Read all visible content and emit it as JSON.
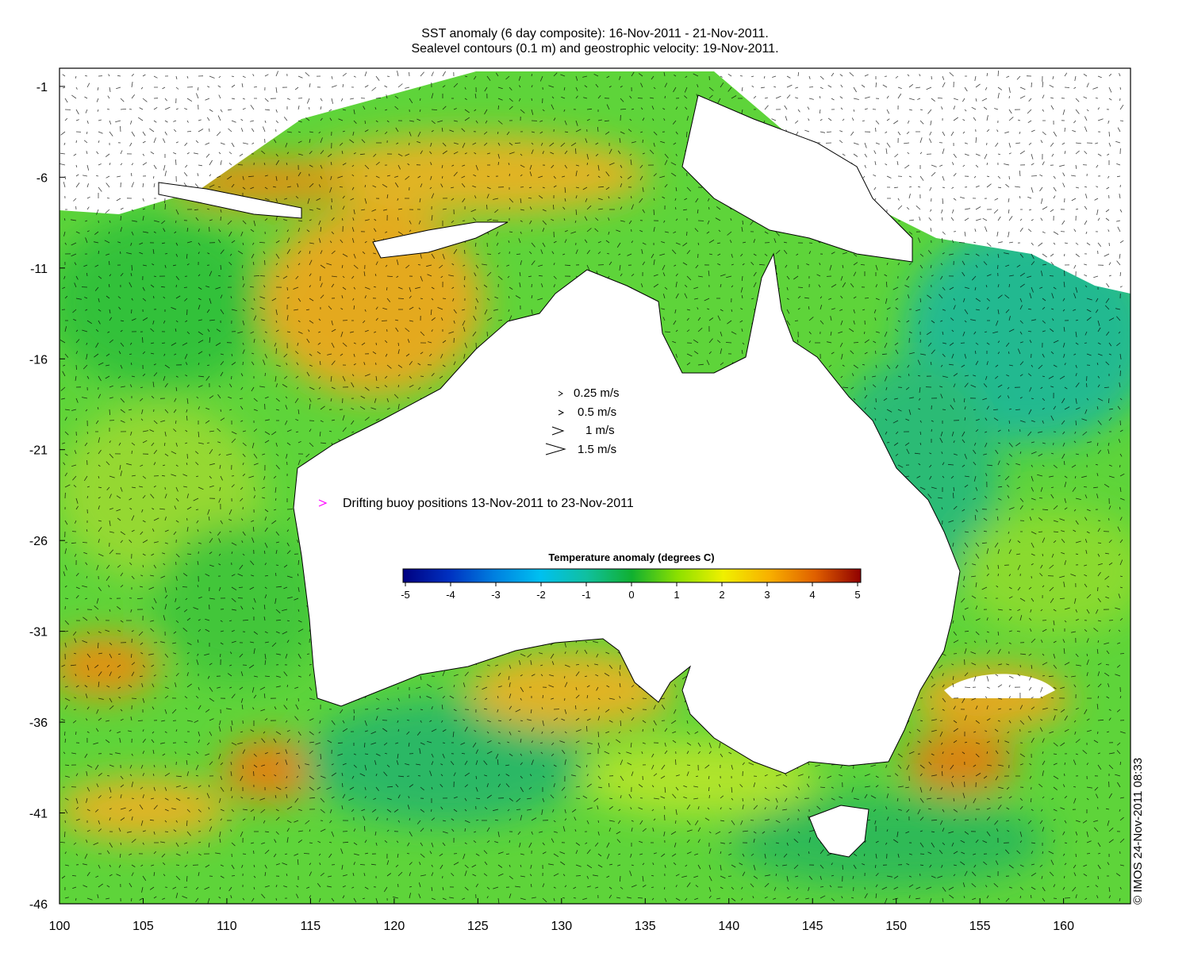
{
  "title_line1": "SST anomaly (6 day composite): 16-Nov-2011 - 21-Nov-2011.",
  "title_line2": "Sealevel contours (0.1 m) and geostrophic velocity: 19-Nov-2011.",
  "x_axis": {
    "ticks": [
      "100",
      "105",
      "110",
      "115",
      "120",
      "125",
      "130",
      "135",
      "140",
      "145",
      "150",
      "155",
      "160"
    ],
    "range": [
      100,
      164
    ]
  },
  "y_axis": {
    "ticks": [
      "-1",
      "-6",
      "-11",
      "-16",
      "-21",
      "-26",
      "-31",
      "-36",
      "-41",
      "-46"
    ],
    "range": [
      -46,
      0
    ]
  },
  "velocity_legend": [
    "0.25 m/s",
    "0.5 m/s",
    "1 m/s",
    "1.5 m/s"
  ],
  "buoy_legend": {
    "label": "Drifting buoy positions 13-Nov-2011 to 23-Nov-2011",
    "color": "#ff00ff"
  },
  "colorbar": {
    "title": "Temperature anomaly (degrees C)",
    "ticks": [
      "-5",
      "-4",
      "-3",
      "-2",
      "-1",
      "0",
      "1",
      "2",
      "3",
      "4",
      "5"
    ],
    "range": [
      -5,
      5
    ]
  },
  "credit": "© IMOS 24-Nov-2011 08:33",
  "colors": {
    "land": "#ffffff",
    "warm": "#f5a000",
    "neutral": "#2ec82e",
    "cool": "#1fb79a"
  }
}
